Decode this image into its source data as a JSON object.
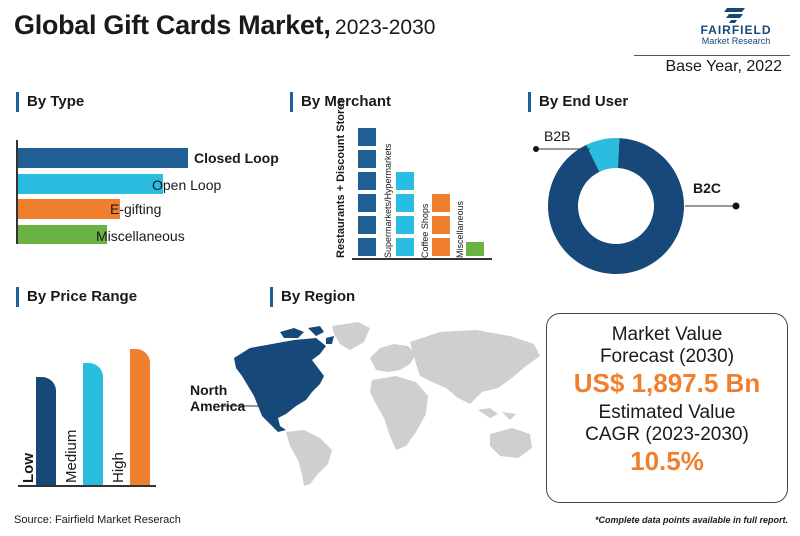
{
  "header": {
    "title_main": "Global Gift Cards Market,",
    "title_years": "2023-2030",
    "logo_brand": "FAIRFIELD",
    "logo_sub": "Market Research",
    "base_year": "Base Year, 2022"
  },
  "colors": {
    "navy": "#1f5f94",
    "dark_blue": "#17487a",
    "cyan": "#2bbde0",
    "orange": "#f07f2d",
    "green": "#6bb244",
    "map_gray": "#cfcfcf"
  },
  "sections": {
    "type": "By Type",
    "merchant": "By Merchant",
    "end_user": "By End User",
    "price": "By Price Range",
    "region": "By Region"
  },
  "chart_data": [
    {
      "type": "bar",
      "orientation": "horizontal",
      "section": "By Type",
      "categories": [
        "Closed Loop",
        "Open Loop",
        "E-gifting",
        "Miscellaneous"
      ],
      "values": [
        4,
        3.4,
        2.4,
        2.1
      ],
      "colors": [
        "#1f5f94",
        "#2bbde0",
        "#f07f2d",
        "#6bb244"
      ]
    },
    {
      "type": "bar",
      "section": "By Merchant",
      "categories": [
        "Restaurants + Discount Stores",
        "Supermarkets/Hypermarkets",
        "Coffee Shops",
        "Miscellaneous"
      ],
      "values": [
        6,
        4,
        3,
        1
      ],
      "colors": [
        "#1f5f94",
        "#2bbde0",
        "#f07f2d",
        "#6bb244"
      ]
    },
    {
      "type": "pie",
      "variant": "donut",
      "section": "By End User",
      "categories": [
        "B2C",
        "B2B"
      ],
      "values": [
        92,
        8
      ],
      "colors": [
        "#17487a",
        "#2bbde0"
      ]
    },
    {
      "type": "bar",
      "section": "By Price Range",
      "categories": [
        "Low",
        "Medium",
        "High"
      ],
      "values": [
        2,
        3,
        4
      ],
      "colors": [
        "#17487a",
        "#2bbde0",
        "#f07f2d"
      ]
    }
  ],
  "region": {
    "highlight": "North America"
  },
  "market": {
    "line1": "Market Value",
    "line2": "Forecast (2030)",
    "value": "US$ 1,897.5 Bn",
    "line3": "Estimated Value",
    "line4": "CAGR (2023-2030)",
    "cagr": "10.5%"
  },
  "footer": {
    "source": "Source: Fairfield Market Reserach",
    "note": "*Complete data points available in full report."
  }
}
